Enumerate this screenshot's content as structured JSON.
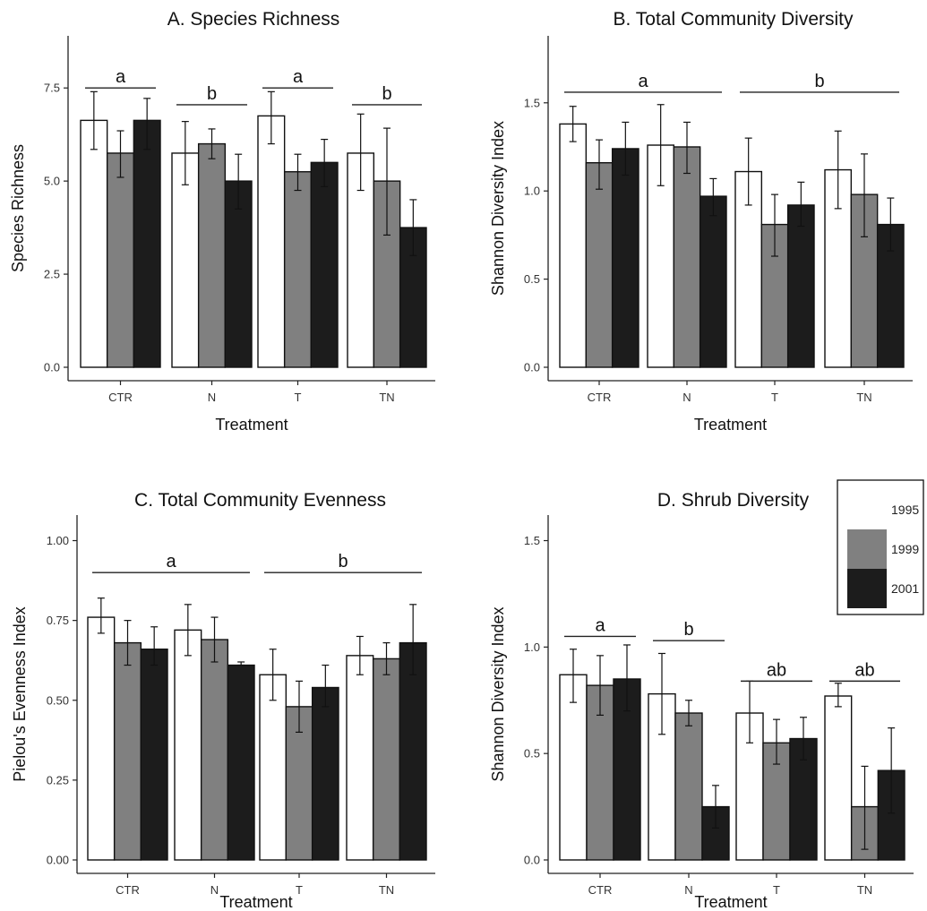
{
  "colors": {
    "1995": "#ffffff",
    "1999": "#808080",
    "2001": "#1c1c1c"
  },
  "legend": {
    "entries": [
      "1995",
      "1999",
      "2001"
    ]
  },
  "chart_data": [
    {
      "type": "bar",
      "title": "A. Species Richness",
      "xlabel": "Treatment",
      "ylabel": "Species Richness",
      "categories": [
        "CTR",
        "N",
        "T",
        "TN"
      ],
      "ylim": [
        0,
        8.9
      ],
      "yticks": [
        0,
        2.5,
        5,
        7.5
      ],
      "ytick_labels": [
        "0.0",
        "2.5",
        "5.0",
        "7.5"
      ],
      "series": [
        {
          "name": "1995",
          "values": [
            6.63,
            5.75,
            6.75,
            5.75
          ],
          "err_low": [
            5.85,
            4.9,
            6.0,
            4.75
          ],
          "err_high": [
            7.4,
            6.6,
            7.4,
            6.8
          ]
        },
        {
          "name": "1999",
          "values": [
            5.75,
            6.0,
            5.25,
            5.0
          ],
          "err_low": [
            5.1,
            5.6,
            4.75,
            3.55
          ],
          "err_high": [
            6.35,
            6.4,
            5.72,
            6.42
          ]
        },
        {
          "name": "2001",
          "values": [
            6.63,
            5.0,
            5.5,
            3.75
          ],
          "err_low": [
            5.85,
            4.25,
            4.85,
            3.0
          ],
          "err_high": [
            7.22,
            5.72,
            6.12,
            4.5
          ]
        }
      ],
      "significance": [
        {
          "label": "a",
          "from": 0,
          "to": 0,
          "level": 7.5
        },
        {
          "label": "b",
          "from": 1,
          "to": 1,
          "level": 7.05
        },
        {
          "label": "a",
          "from": 2,
          "to": 2,
          "level": 7.5
        },
        {
          "label": "b",
          "from": 3,
          "to": 3,
          "level": 7.05
        }
      ]
    },
    {
      "type": "bar",
      "title": "B. Total Community Diversity",
      "xlabel": "Treatment",
      "ylabel": "Shannon Diversity Index",
      "categories": [
        "CTR",
        "N",
        "T",
        "TN"
      ],
      "ylim": [
        0,
        1.88
      ],
      "yticks": [
        0,
        0.5,
        1.0,
        1.5
      ],
      "ytick_labels": [
        "0.0",
        "0.5",
        "1.0",
        "1.5"
      ],
      "series": [
        {
          "name": "1995",
          "values": [
            1.38,
            1.26,
            1.11,
            1.12
          ],
          "err_low": [
            1.28,
            1.03,
            0.92,
            0.9
          ],
          "err_high": [
            1.48,
            1.49,
            1.3,
            1.34
          ]
        },
        {
          "name": "1999",
          "values": [
            1.16,
            1.25,
            0.81,
            0.98
          ],
          "err_low": [
            1.01,
            1.1,
            0.63,
            0.74
          ],
          "err_high": [
            1.29,
            1.39,
            0.98,
            1.21
          ]
        },
        {
          "name": "2001",
          "values": [
            1.24,
            0.97,
            0.92,
            0.81
          ],
          "err_low": [
            1.09,
            0.86,
            0.8,
            0.66
          ],
          "err_high": [
            1.39,
            1.07,
            1.05,
            0.96
          ]
        }
      ],
      "significance": [
        {
          "label": "a",
          "from": 0,
          "to": 1,
          "level": 1.56
        },
        {
          "label": "b",
          "from": 2,
          "to": 3,
          "level": 1.56
        }
      ]
    },
    {
      "type": "bar",
      "title": "C. Total Community Evenness",
      "xlabel": "Treatment",
      "ylabel": "Pielou's Evenness Index",
      "categories": [
        "CTR",
        "N",
        "T",
        "TN"
      ],
      "ylim": [
        0,
        1.08
      ],
      "yticks": [
        0,
        0.25,
        0.5,
        0.75,
        1.0
      ],
      "ytick_labels": [
        "0.00",
        "0.25",
        "0.50",
        "0.75",
        "1.00"
      ],
      "series": [
        {
          "name": "1995",
          "values": [
            0.76,
            0.72,
            0.58,
            0.64
          ],
          "err_low": [
            0.71,
            0.64,
            0.5,
            0.58
          ],
          "err_high": [
            0.82,
            0.8,
            0.66,
            0.7
          ]
        },
        {
          "name": "1999",
          "values": [
            0.68,
            0.69,
            0.48,
            0.63
          ],
          "err_low": [
            0.61,
            0.62,
            0.4,
            0.58
          ],
          "err_high": [
            0.75,
            0.76,
            0.56,
            0.68
          ]
        },
        {
          "name": "2001",
          "values": [
            0.66,
            0.61,
            0.54,
            0.68
          ],
          "err_low": [
            0.61,
            0.61,
            0.48,
            0.58
          ],
          "err_high": [
            0.73,
            0.62,
            0.61,
            0.8
          ]
        }
      ],
      "significance": [
        {
          "label": "a",
          "from": 0,
          "to": 1,
          "level": 0.9
        },
        {
          "label": "b",
          "from": 2,
          "to": 3,
          "level": 0.9
        }
      ]
    },
    {
      "type": "bar",
      "title": "D. Shrub Diversity",
      "xlabel": "Treatment",
      "ylabel": "Shannon Diversity Index",
      "categories": [
        "CTR",
        "N",
        "T",
        "TN"
      ],
      "ylim": [
        0,
        1.62
      ],
      "yticks": [
        0,
        0.5,
        1.0,
        1.5
      ],
      "ytick_labels": [
        "0.0",
        "0.5",
        "1.0",
        "1.5"
      ],
      "series": [
        {
          "name": "1995",
          "values": [
            0.87,
            0.78,
            0.69,
            0.77
          ],
          "err_low": [
            0.74,
            0.59,
            0.55,
            0.72
          ],
          "err_high": [
            0.99,
            0.97,
            0.84,
            0.83
          ]
        },
        {
          "name": "1999",
          "values": [
            0.82,
            0.69,
            0.55,
            0.25
          ],
          "err_low": [
            0.68,
            0.63,
            0.45,
            0.05
          ],
          "err_high": [
            0.96,
            0.75,
            0.66,
            0.44
          ]
        },
        {
          "name": "2001",
          "values": [
            0.85,
            0.25,
            0.57,
            0.42
          ],
          "err_low": [
            0.7,
            0.15,
            0.47,
            0.22
          ],
          "err_high": [
            1.01,
            0.35,
            0.67,
            0.62
          ]
        }
      ],
      "significance": [
        {
          "label": "a",
          "from": 0,
          "to": 0,
          "level": 1.05
        },
        {
          "label": "b",
          "from": 1,
          "to": 1,
          "level": 1.03
        },
        {
          "label": "ab",
          "from": 2,
          "to": 2,
          "level": 0.84
        },
        {
          "label": "ab",
          "from": 3,
          "to": 3,
          "level": 0.84
        }
      ]
    }
  ]
}
